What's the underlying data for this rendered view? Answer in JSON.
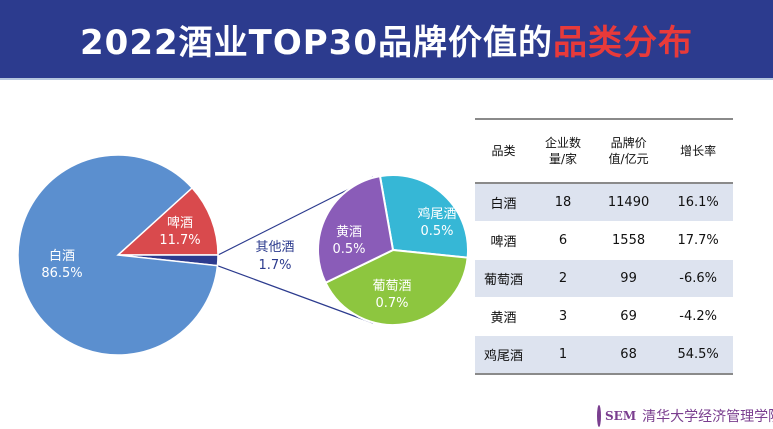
{
  "title": {
    "main": "2022酒业TOP30品牌价值的",
    "highlight": "品类分布"
  },
  "chart_data": [
    {
      "type": "pie",
      "slices": [
        {
          "label": "白酒",
          "value": 86.5,
          "display": "86.5%",
          "color": "#5b8fcf"
        },
        {
          "label": "啤酒",
          "value": 11.7,
          "display": "11.7%",
          "color": "#d94a4d"
        },
        {
          "label": "其他酒",
          "value": 1.7,
          "display": "1.7%",
          "color": "#2c3b8e"
        }
      ]
    },
    {
      "type": "pie",
      "slices": [
        {
          "label": "鸡尾酒",
          "value": 0.5,
          "display": "0.5%",
          "color": "#36b7d6"
        },
        {
          "label": "葡萄酒",
          "value": 0.7,
          "display": "0.7%",
          "color": "#8dc63f"
        },
        {
          "label": "黄酒",
          "value": 0.5,
          "display": "0.5%",
          "color": "#8a5cb8"
        }
      ]
    },
    {
      "type": "table",
      "headers": [
        "品类",
        "企业数量/家",
        "品牌价值/亿元",
        "增长率"
      ],
      "rows": [
        [
          "白酒",
          "18",
          "11490",
          "16.1%"
        ],
        [
          "啤酒",
          "6",
          "1558",
          "17.7%"
        ],
        [
          "葡萄酒",
          "2",
          "99",
          "-6.6%"
        ],
        [
          "黄酒",
          "3",
          "69",
          "-4.2%"
        ],
        [
          "鸡尾酒",
          "1",
          "68",
          "54.5%"
        ]
      ]
    }
  ],
  "logo": {
    "abbr": "SEM",
    "school": "清华大学经济管理学院"
  }
}
